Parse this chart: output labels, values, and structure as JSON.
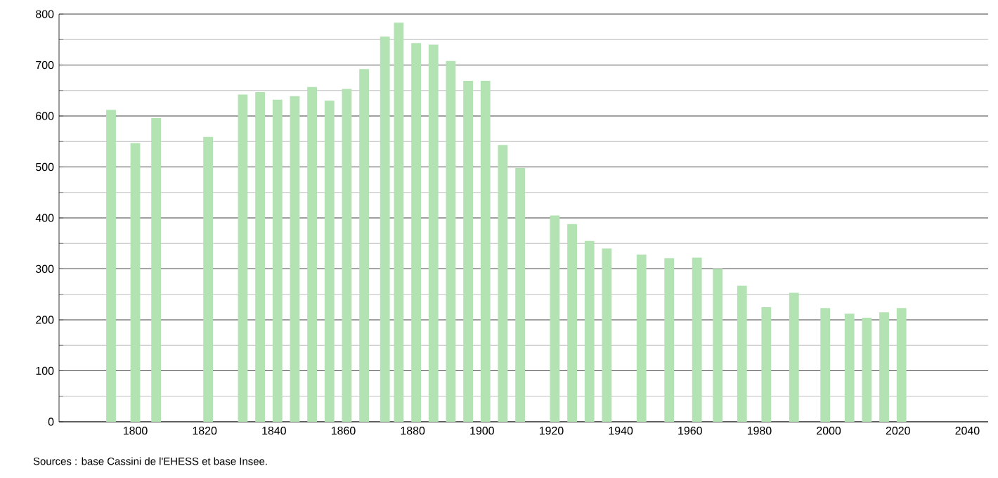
{
  "chart_data": {
    "type": "bar",
    "color": "#b3e3b3",
    "x": [
      1793,
      1800,
      1806,
      1821,
      1831,
      1836,
      1841,
      1846,
      1851,
      1856,
      1861,
      1866,
      1872,
      1876,
      1881,
      1886,
      1891,
      1896,
      1901,
      1906,
      1911,
      1921,
      1926,
      1931,
      1936,
      1946,
      1954,
      1962,
      1968,
      1975,
      1982,
      1990,
      1999,
      2006,
      2011,
      2016,
      2021
    ],
    "values": [
      612,
      547,
      596,
      559,
      642,
      647,
      632,
      639,
      657,
      630,
      653,
      692,
      756,
      783,
      743,
      740,
      708,
      669,
      669,
      543,
      498,
      405,
      388,
      355,
      340,
      328,
      321,
      322,
      300,
      267,
      225,
      253,
      223,
      212,
      204,
      215,
      223
    ],
    "xlim": [
      1778,
      2046
    ],
    "xticks": [
      1800,
      1820,
      1840,
      1860,
      1880,
      1900,
      1920,
      1940,
      1960,
      1980,
      2000,
      2020,
      2040
    ],
    "ylim": [
      0,
      800
    ],
    "yticks": [
      0,
      {
        "value": 50,
        "label": null
      },
      100,
      {
        "value": 150,
        "label": null
      },
      200,
      {
        "value": 250,
        "label": null
      },
      300,
      {
        "value": 350,
        "label": null
      },
      400,
      {
        "value": 450,
        "label": null
      },
      500,
      {
        "value": 550,
        "label": null
      },
      600,
      {
        "value": 650,
        "label": null
      },
      700,
      {
        "value": 750,
        "label": null
      },
      800
    ],
    "grid": "y",
    "annotations": [
      "Sources : base Cassini de l'EHESS et base Insee."
    ]
  }
}
